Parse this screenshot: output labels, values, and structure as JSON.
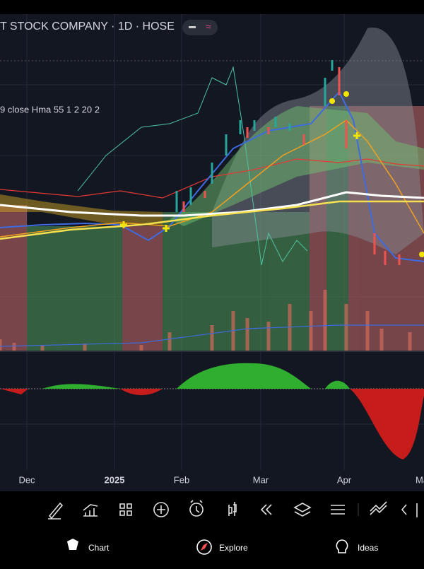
{
  "header": {
    "title": "T STOCK COMPANY · 1D · HOSE"
  },
  "indicator": {
    "label": "9 close Hma 55 1 2 20 2"
  },
  "x_axis": {
    "labels": [
      "Dec",
      "2025",
      "Feb",
      "Mar",
      "Apr",
      "Ma"
    ]
  },
  "nav": {
    "tabs": [
      "Chart",
      "Explore",
      "Ideas"
    ]
  }
}
